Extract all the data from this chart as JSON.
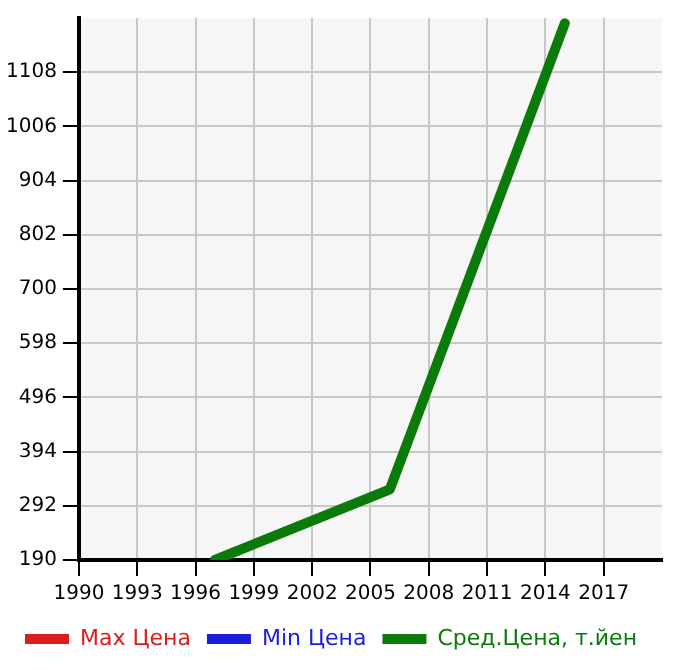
{
  "chart_data": {
    "type": "line",
    "x": [
      1997,
      2006,
      2015
    ],
    "series": [
      {
        "name": "Max Цена",
        "color": "#dd1c1c",
        "values": [
          null,
          null,
          null
        ]
      },
      {
        "name": "Min Цена",
        "color": "#1c1cdd",
        "values": [
          null,
          null,
          null
        ]
      },
      {
        "name": "Сред.Цена, т.йен",
        "color": "#0a7a0a",
        "values": [
          190,
          323,
          1200
        ]
      }
    ],
    "xlim": [
      1990,
      2020
    ],
    "xticks": [
      1990,
      1993,
      1996,
      1999,
      2002,
      2005,
      2008,
      2011,
      2014,
      2017
    ],
    "ylim": [
      190,
      1210
    ],
    "yticks": [
      190,
      292,
      394,
      496,
      598,
      700,
      802,
      904,
      1006,
      1108
    ],
    "grid": true,
    "legend": "bottom",
    "marker": "none",
    "line_style": "solid"
  }
}
